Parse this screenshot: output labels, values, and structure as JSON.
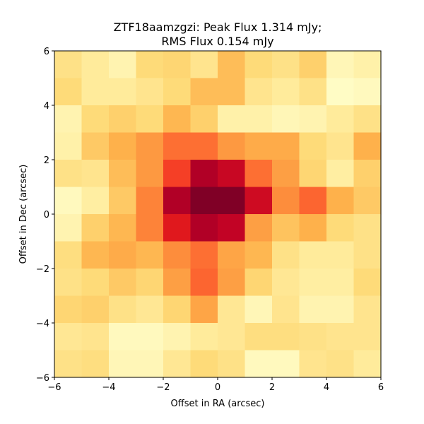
{
  "chart_data": {
    "type": "heatmap",
    "title": "ZTF18aamzgzi: Peak Flux 1.314 mJy;",
    "subtitle": "RMS Flux 0.154 mJy",
    "xlabel": "Offset in RA (arcsec)",
    "ylabel": "Offset in Dec (arcsec)",
    "xlim": [
      -6,
      6
    ],
    "ylim": [
      -6,
      6
    ],
    "x_ticks": [
      -6,
      -4,
      -2,
      0,
      2,
      4,
      6
    ],
    "y_ticks": [
      -6,
      -4,
      -2,
      0,
      2,
      4,
      6
    ],
    "x_tick_labels": [
      "−6",
      "−4",
      "−2",
      "0",
      "2",
      "4",
      "6"
    ],
    "y_tick_labels": [
      "−6",
      "−4",
      "−2",
      "0",
      "2",
      "4",
      "6"
    ],
    "colormap": "YlOrRd",
    "grid": false,
    "rows_top_to_bottom": [
      [
        0.2,
        0.14,
        0.08,
        0.24,
        0.26,
        0.18,
        0.34,
        0.24,
        0.2,
        0.28,
        0.06,
        0.1
      ],
      [
        0.24,
        0.14,
        0.14,
        0.18,
        0.24,
        0.34,
        0.34,
        0.18,
        0.14,
        0.2,
        0.02,
        0.04
      ],
      [
        0.08,
        0.24,
        0.28,
        0.24,
        0.36,
        0.28,
        0.1,
        0.1,
        0.06,
        0.08,
        0.14,
        0.2
      ],
      [
        0.1,
        0.3,
        0.38,
        0.46,
        0.56,
        0.56,
        0.46,
        0.4,
        0.4,
        0.24,
        0.18,
        0.38
      ],
      [
        0.2,
        0.18,
        0.34,
        0.46,
        0.66,
        0.9,
        0.84,
        0.56,
        0.44,
        0.26,
        0.12,
        0.28
      ],
      [
        0.04,
        0.12,
        0.3,
        0.52,
        0.9,
        1.0,
        1.0,
        0.82,
        0.5,
        0.58,
        0.38,
        0.3
      ],
      [
        0.08,
        0.28,
        0.36,
        0.52,
        0.76,
        0.9,
        0.86,
        0.44,
        0.32,
        0.38,
        0.24,
        0.2
      ],
      [
        0.22,
        0.36,
        0.4,
        0.36,
        0.5,
        0.56,
        0.42,
        0.36,
        0.2,
        0.14,
        0.14,
        0.2
      ],
      [
        0.2,
        0.24,
        0.3,
        0.26,
        0.44,
        0.58,
        0.44,
        0.26,
        0.16,
        0.12,
        0.12,
        0.24
      ],
      [
        0.26,
        0.28,
        0.2,
        0.16,
        0.26,
        0.42,
        0.16,
        0.06,
        0.18,
        0.08,
        0.08,
        0.18
      ],
      [
        0.16,
        0.18,
        0.04,
        0.04,
        0.08,
        0.14,
        0.16,
        0.22,
        0.22,
        0.2,
        0.18,
        0.18
      ],
      [
        0.2,
        0.22,
        0.06,
        0.06,
        0.16,
        0.24,
        0.2,
        0.04,
        0.04,
        0.18,
        0.2,
        0.14
      ]
    ]
  }
}
